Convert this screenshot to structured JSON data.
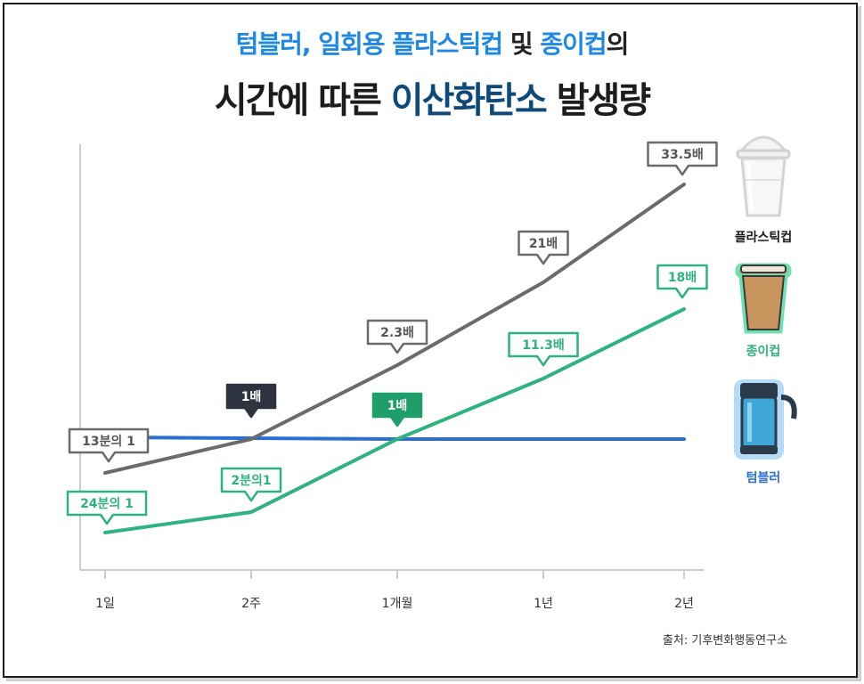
{
  "title": {
    "line1": [
      {
        "text": "텀블러, 일회용 플라스틱컵",
        "color": "#1e88e5"
      },
      {
        "text": " 및 ",
        "color": "#222222"
      },
      {
        "text": "종이컵",
        "color": "#1e88e5"
      },
      {
        "text": "의",
        "color": "#222222"
      }
    ],
    "line2": [
      {
        "text": "시간에 따른 ",
        "color": "#1c1c1c"
      },
      {
        "text": "이산화탄소",
        "color": "#0d4a7a"
      },
      {
        "text": " 발생량",
        "color": "#1c1c1c"
      }
    ]
  },
  "chart_data": {
    "type": "line",
    "categories": [
      "1일",
      "2주",
      "1개월",
      "1년",
      "2년"
    ],
    "series": [
      {
        "name": "플라스틱컵",
        "color": "#6b6b6b",
        "values": [
          0.077,
          1,
          2.3,
          21,
          33.5
        ],
        "labels": [
          "13분의 1",
          "1배",
          "2.3배",
          "21배",
          "33.5배"
        ]
      },
      {
        "name": "종이컵",
        "color": "#2db37d",
        "values": [
          0.042,
          0.5,
          1,
          11.3,
          18
        ],
        "labels": [
          "24분의 1",
          "2분의1",
          "1배",
          "11.3배",
          "18배"
        ]
      },
      {
        "name": "텀블러",
        "color": "#2a6fd1",
        "values": [
          1,
          1,
          1,
          1,
          1
        ]
      }
    ],
    "xlabel": "",
    "ylabel": "",
    "grid": false,
    "legend": "right"
  },
  "legend": [
    {
      "label": "플라스틱컵",
      "color": "#1c1c1c",
      "icon": "plastic-cup-icon"
    },
    {
      "label": "종이컵",
      "color": "#2db37d",
      "icon": "paper-cup-icon"
    },
    {
      "label": "텀블러",
      "color": "#2a6fd1",
      "icon": "tumbler-icon"
    }
  ],
  "source": "출처: 기후변화행동연구소"
}
